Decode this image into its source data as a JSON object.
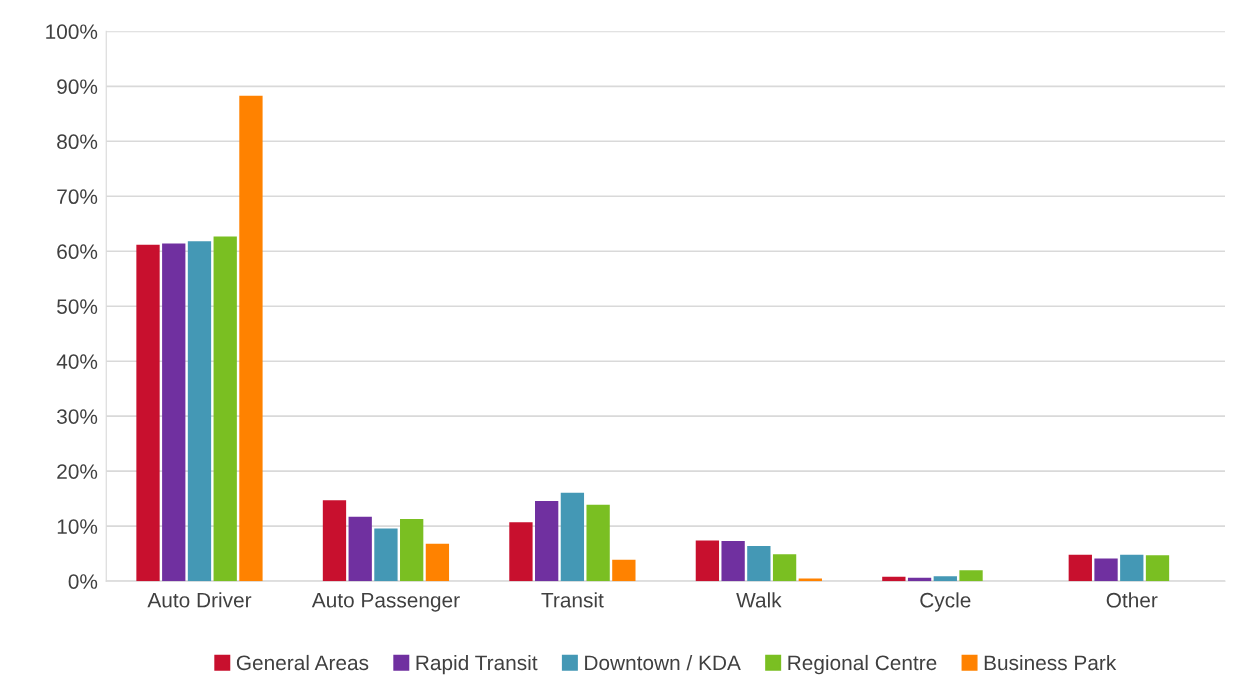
{
  "chart_data": {
    "type": "bar",
    "categories": [
      "Auto Driver",
      "Auto Passenger",
      "Transit",
      "Walk",
      "Cycle",
      "Other"
    ],
    "series": [
      {
        "name": "General Areas",
        "color": "#c8102e",
        "values": [
          61.2,
          14.7,
          10.7,
          7.4,
          0.8,
          4.8
        ]
      },
      {
        "name": "Rapid Transit",
        "color": "#7030a0",
        "values": [
          61.4,
          11.7,
          14.6,
          7.3,
          0.6,
          4.1
        ]
      },
      {
        "name": "Downtown / KDA",
        "color": "#4498b5",
        "values": [
          61.8,
          9.6,
          16.1,
          6.4,
          0.9,
          4.8
        ]
      },
      {
        "name": "Regional Centre",
        "color": "#7abf22",
        "values": [
          62.7,
          11.3,
          13.9,
          4.9,
          2.0,
          4.7
        ]
      },
      {
        "name": "Business Park",
        "color": "#ff8200",
        "values": [
          88.3,
          6.8,
          3.9,
          0.5,
          null,
          null
        ]
      }
    ],
    "ylim": [
      0,
      100
    ],
    "yticks": [
      {
        "value": 0,
        "label": "0%"
      },
      {
        "value": 10,
        "label": "10%"
      },
      {
        "value": 20,
        "label": "20%"
      },
      {
        "value": 30,
        "label": "30%"
      },
      {
        "value": 40,
        "label": "40%"
      },
      {
        "value": 50,
        "label": "50%"
      },
      {
        "value": 60,
        "label": "60%"
      },
      {
        "value": 70,
        "label": "70%"
      },
      {
        "value": 80,
        "label": "80%"
      },
      {
        "value": 90,
        "label": "90%"
      },
      {
        "value": 100,
        "label": "100%"
      }
    ],
    "grid": "y",
    "legend": "bottom"
  }
}
